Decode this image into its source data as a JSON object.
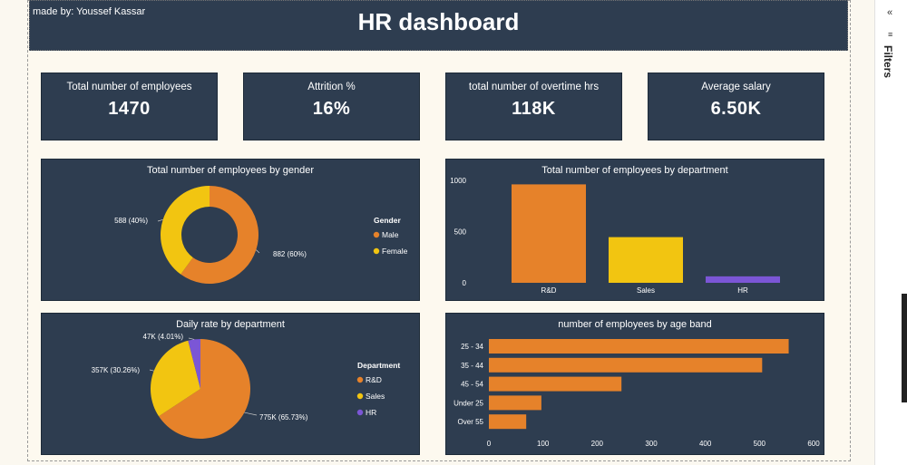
{
  "header": {
    "made_by": "made by: Youssef Kassar",
    "title": "HR dashboard"
  },
  "kpis": [
    {
      "label": "Total number of employees",
      "value": "1470"
    },
    {
      "label": "Attrition %",
      "value": "16%"
    },
    {
      "label": "total number of overtime hrs",
      "value": "118K"
    },
    {
      "label": "Average salary",
      "value": "6.50K"
    }
  ],
  "filters_pane": {
    "label": "Filters",
    "collapse_glyph": "«",
    "filter_glyph": "≡"
  },
  "colors": {
    "orange": "#e6822a",
    "yellow": "#f2c511",
    "purple": "#7b56d6",
    "panel": "#2e3d50"
  },
  "chart_data": [
    {
      "type": "pie",
      "variant": "donut",
      "title": "Total number of employees by gender",
      "legend_title": "Gender",
      "legend_position": "right",
      "slices": [
        {
          "name": "Male",
          "value": 882,
          "label": "882 (60%)",
          "color": "#e6822a"
        },
        {
          "name": "Female",
          "value": 588,
          "label": "588 (40%)",
          "color": "#f2c511"
        }
      ]
    },
    {
      "type": "bar",
      "title": "Total number of employees by department",
      "categories": [
        "R&D",
        "Sales",
        "HR"
      ],
      "values": [
        961,
        446,
        63
      ],
      "colors": [
        "#e6822a",
        "#f2c511",
        "#7b56d6"
      ],
      "ylim": [
        0,
        1000
      ],
      "yticks": [
        "0",
        "500",
        "1000"
      ],
      "grid": false
    },
    {
      "type": "pie",
      "title": "Daily rate by department",
      "legend_title": "Department",
      "legend_position": "right",
      "slices": [
        {
          "name": "R&D",
          "value": 775,
          "label": "775K (65.73%)",
          "color": "#e6822a"
        },
        {
          "name": "Sales",
          "value": 357,
          "label": "357K (30.26%)",
          "color": "#f2c511"
        },
        {
          "name": "HR",
          "value": 47,
          "label": "47K (4.01%)",
          "color": "#7b56d6"
        }
      ]
    },
    {
      "type": "bar",
      "orientation": "horizontal",
      "title": "number of employees by age band",
      "categories": [
        "25 - 34",
        "35 - 44",
        "45 - 54",
        "Under 25",
        "Over 55"
      ],
      "values": [
        554,
        505,
        245,
        97,
        69
      ],
      "color": "#e6822a",
      "xlim": [
        0,
        600
      ],
      "xticks": [
        "0",
        "100",
        "200",
        "300",
        "400",
        "500",
        "600"
      ],
      "grid": false
    }
  ]
}
